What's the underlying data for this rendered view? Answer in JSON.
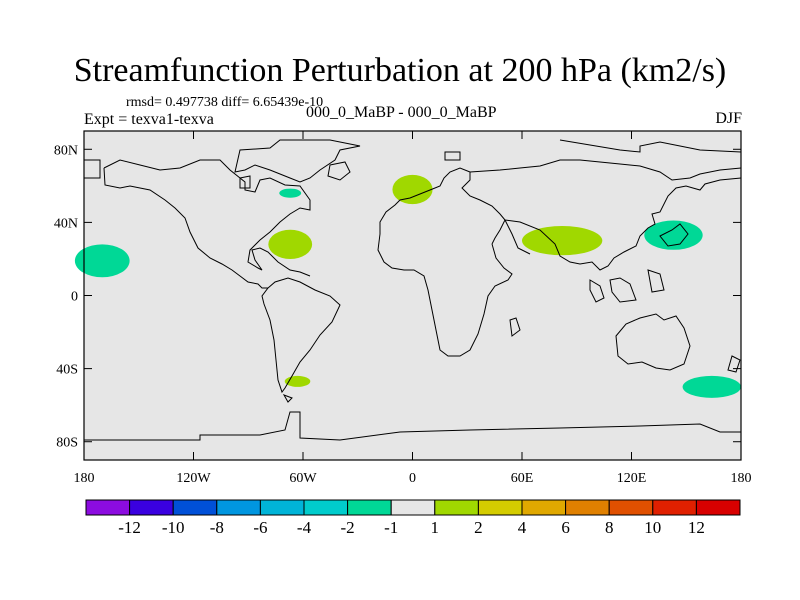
{
  "title": "Streamfunction Perturbation at 200 hPa (km2/s)",
  "stats": {
    "rmsd_line": "rmsd= 0.497738 diff= 6.65439e-10"
  },
  "experiment": "Expt = texva1-texva",
  "case_label": "000_0_MaBP - 000_0_MaBP",
  "season": "DJF",
  "map": {
    "lon_range": [
      -180,
      180
    ],
    "lat_range": [
      -90,
      90
    ],
    "lat_ticks": [
      {
        "value": 80,
        "label": "80N"
      },
      {
        "value": 40,
        "label": "40N"
      },
      {
        "value": 0,
        "label": "0"
      },
      {
        "value": -40,
        "label": "40S"
      },
      {
        "value": -80,
        "label": "80S"
      }
    ],
    "lon_ticks": [
      {
        "value": -180,
        "label": "180"
      },
      {
        "value": -120,
        "label": "120W"
      },
      {
        "value": -60,
        "label": "60W"
      },
      {
        "value": 0,
        "label": "0"
      },
      {
        "value": 60,
        "label": "60E"
      },
      {
        "value": 120,
        "label": "120E"
      },
      {
        "value": 180,
        "label": "180"
      }
    ],
    "background_color": "#e6e6e6",
    "anomalies": [
      {
        "name": "pacific-negative",
        "lon": -170,
        "lat": 19,
        "rlon": 15,
        "rlat": 9,
        "sign": "negative",
        "color": "#00d896"
      },
      {
        "name": "north-america-negative",
        "lon": -67,
        "lat": 56,
        "rlon": 6,
        "rlat": 2.5,
        "sign": "negative",
        "color": "#00d896"
      },
      {
        "name": "atlantic-positive",
        "lon": -67,
        "lat": 28,
        "rlon": 12,
        "rlat": 8,
        "sign": "positive",
        "color": "#a0d800"
      },
      {
        "name": "europe-positive",
        "lon": 0,
        "lat": 58,
        "rlon": 11,
        "rlat": 8,
        "sign": "positive",
        "color": "#a0d800"
      },
      {
        "name": "india-positive",
        "lon": 82,
        "lat": 30,
        "rlon": 22,
        "rlat": 8,
        "sign": "positive",
        "color": "#a0d800"
      },
      {
        "name": "japan-negative",
        "lon": 143,
        "lat": 33,
        "rlon": 16,
        "rlat": 8,
        "sign": "negative",
        "color": "#00d896"
      },
      {
        "name": "south-america-positive",
        "lon": -63,
        "lat": -47,
        "rlon": 7,
        "rlat": 3,
        "sign": "positive",
        "color": "#a0d800"
      },
      {
        "name": "tasman-negative",
        "lon": 164,
        "lat": -50,
        "rlon": 16,
        "rlat": 6,
        "sign": "negative",
        "color": "#00d896"
      }
    ]
  },
  "colorbar": {
    "colors": [
      "#8c0ce0",
      "#3a00e0",
      "#0050d8",
      "#0096e0",
      "#00b4d8",
      "#00cccc",
      "#00d896",
      "#e6e6e6",
      "#a0d800",
      "#d4cc00",
      "#e0a800",
      "#e08000",
      "#e05000",
      "#e02000",
      "#d80000"
    ],
    "labels": [
      "-12",
      "-10",
      "-8",
      "-6",
      "-4",
      "-2",
      "-1",
      "1",
      "2",
      "4",
      "6",
      "8",
      "10",
      "12"
    ]
  }
}
